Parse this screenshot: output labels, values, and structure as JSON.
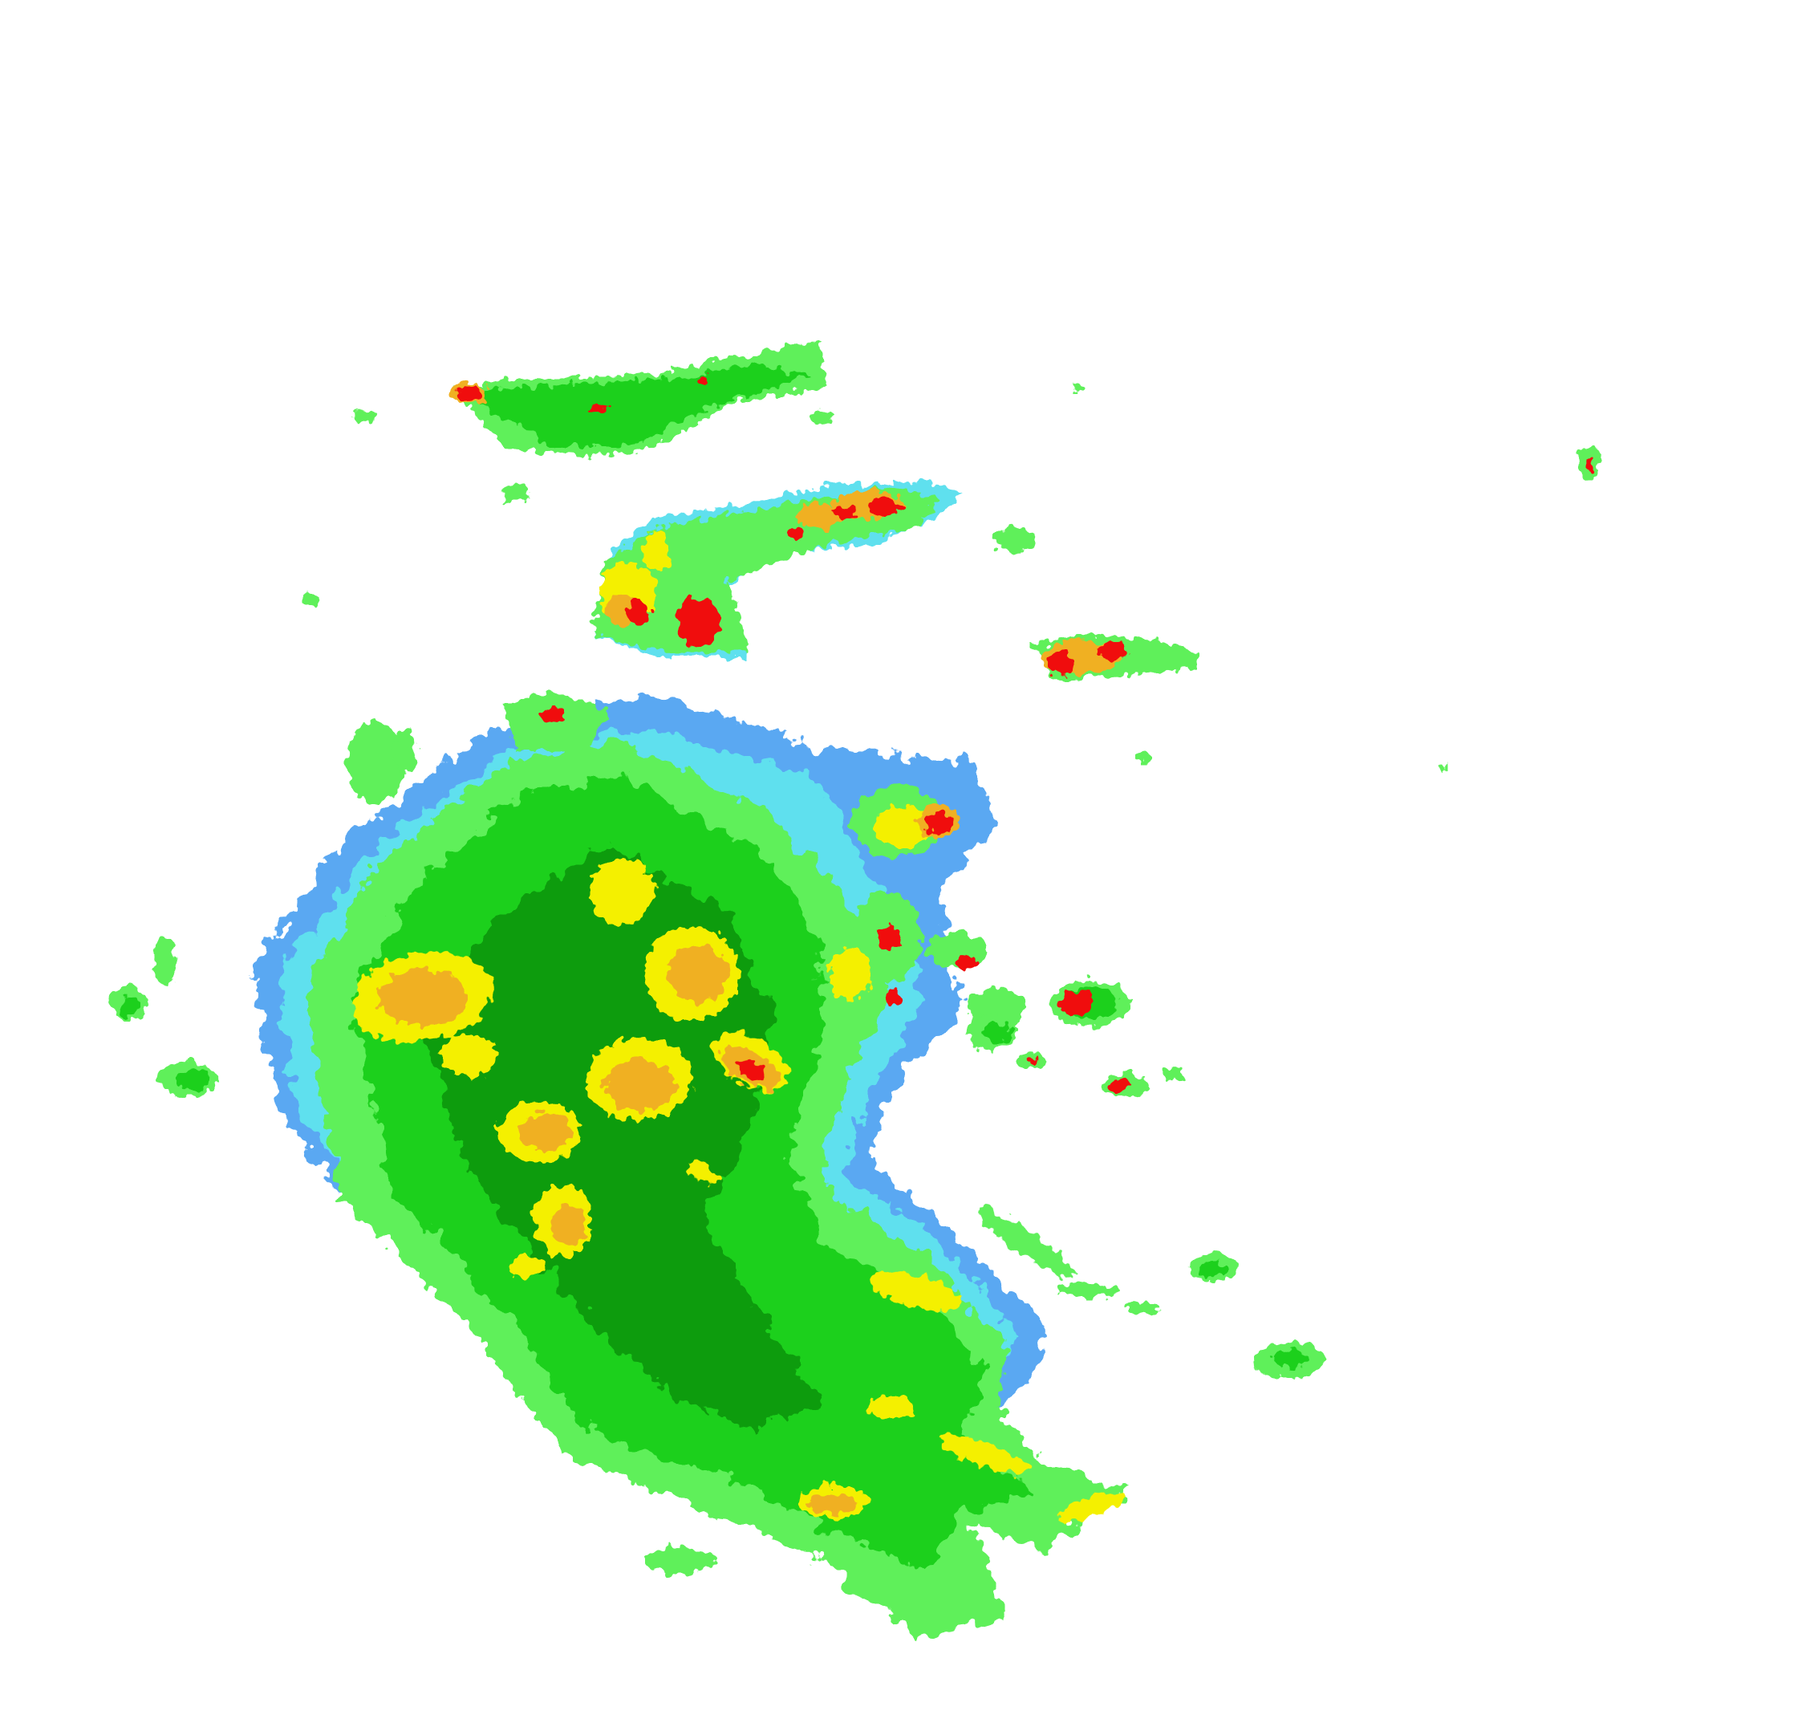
{
  "radar": {
    "background": "#ffffff",
    "palette": {
      "blue": "#5aa8f2",
      "cyan": "#5fe0ee",
      "light_green": "#5ef05a",
      "green": "#1fd01f",
      "dark_green": "#109c10",
      "yellow": "#f4f000",
      "orange": "#f0b020",
      "red": "#f01010"
    }
  }
}
